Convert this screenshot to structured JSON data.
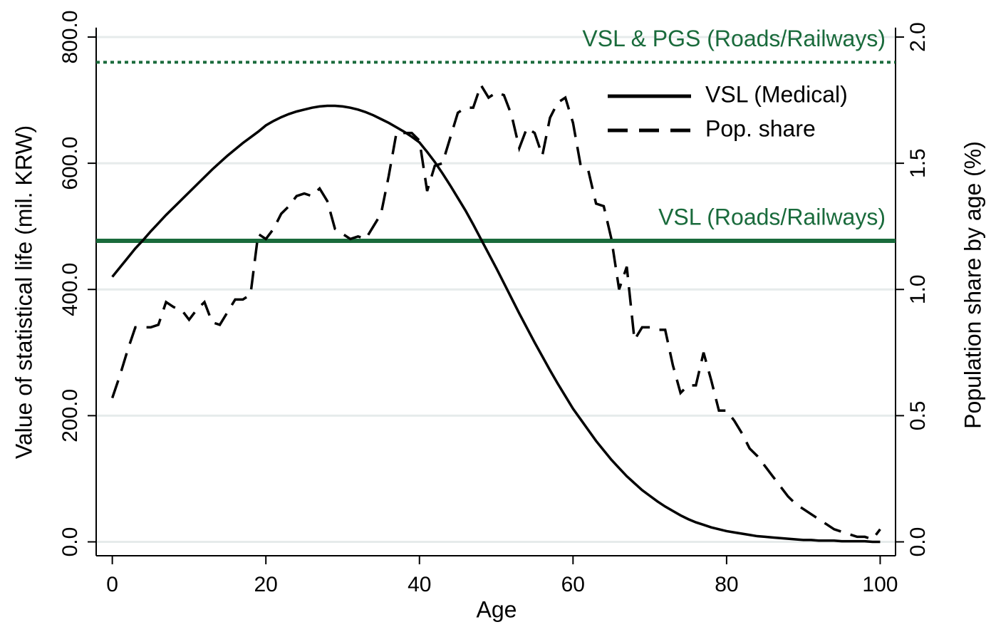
{
  "chart_data": {
    "type": "line",
    "x_label": "Age",
    "y_label": "Value of statistical life (mil. KRW)",
    "y2_label": "Population share by age (%)",
    "xlim": [
      -2.1,
      102
    ],
    "xticks": [
      0,
      20,
      40,
      60,
      80,
      100
    ],
    "ylim": [
      -22,
      815
    ],
    "yticks": [
      {
        "value": 0,
        "label": "0.0"
      },
      {
        "value": 200,
        "label": "200.0"
      },
      {
        "value": 400,
        "label": "400.0"
      },
      {
        "value": 600,
        "label": "600.0"
      },
      {
        "value": 800,
        "label": "800.0"
      }
    ],
    "y2lim": [
      -0.055,
      2.0375
    ],
    "y2ticks": [
      {
        "value": 0,
        "label": "0.0"
      },
      {
        "value": 0.5,
        "label": "0.5"
      },
      {
        "value": 1,
        "label": "1.0"
      },
      {
        "value": 1.5,
        "label": "1.5"
      },
      {
        "value": 2,
        "label": "2.0"
      }
    ],
    "grid": true,
    "legend": "top-right",
    "x": [
      0,
      1,
      2,
      3,
      4,
      5,
      6,
      7,
      8,
      9,
      10,
      11,
      12,
      13,
      14,
      15,
      16,
      17,
      18,
      19,
      20,
      21,
      22,
      23,
      24,
      25,
      26,
      27,
      28,
      29,
      30,
      31,
      32,
      33,
      34,
      35,
      36,
      37,
      38,
      39,
      40,
      41,
      42,
      43,
      44,
      45,
      46,
      47,
      48,
      49,
      50,
      51,
      52,
      53,
      54,
      55,
      56,
      57,
      58,
      59,
      60,
      61,
      62,
      63,
      64,
      65,
      66,
      67,
      68,
      69,
      70,
      71,
      72,
      73,
      74,
      75,
      76,
      77,
      78,
      79,
      80,
      81,
      82,
      83,
      84,
      85,
      86,
      87,
      88,
      89,
      90,
      91,
      92,
      93,
      94,
      95,
      96,
      97,
      98,
      99,
      100
    ],
    "series": [
      {
        "name": "VSL (Medical)",
        "color": "#000000",
        "style": "solid",
        "axis": "y",
        "values": [
          420,
          435,
          450,
          465,
          478,
          492,
          505,
          518,
          530,
          542,
          554,
          566,
          578,
          590,
          601,
          612,
          622,
          632,
          641,
          650,
          660,
          667,
          673,
          678,
          682,
          685,
          688,
          690,
          691,
          691,
          690,
          688,
          685,
          681,
          676,
          670,
          664,
          657,
          650,
          642,
          633,
          618,
          602,
          584,
          565,
          545,
          525,
          503,
          480,
          457,
          434,
          410,
          386,
          362,
          339,
          316,
          294,
          272,
          251,
          231,
          211,
          194,
          177,
          160,
          145,
          130,
          117,
          104,
          93,
          82,
          73,
          64,
          56,
          49,
          42,
          36,
          31,
          27,
          23,
          20,
          17,
          15,
          13,
          11,
          9,
          8,
          7,
          6,
          5,
          4,
          3,
          3,
          2,
          2,
          2,
          1,
          1,
          1,
          1,
          0,
          0
        ]
      },
      {
        "name": "Pop. share",
        "color": "#000000",
        "style": "dashed",
        "axis": "y2",
        "values": [
          0.57,
          0.66,
          0.76,
          0.85,
          0.85,
          0.85,
          0.86,
          0.95,
          0.93,
          0.92,
          0.88,
          0.92,
          0.95,
          0.87,
          0.86,
          0.91,
          0.96,
          0.96,
          0.98,
          1.22,
          1.2,
          1.24,
          1.3,
          1.33,
          1.37,
          1.38,
          1.37,
          1.4,
          1.35,
          1.24,
          1.22,
          1.2,
          1.21,
          1.2,
          1.25,
          1.3,
          1.45,
          1.62,
          1.62,
          1.62,
          1.59,
          1.39,
          1.49,
          1.5,
          1.6,
          1.7,
          1.72,
          1.72,
          1.81,
          1.76,
          1.78,
          1.77,
          1.69,
          1.56,
          1.64,
          1.62,
          1.53,
          1.68,
          1.74,
          1.76,
          1.66,
          1.49,
          1.47,
          1.34,
          1.33,
          1.2,
          1.0,
          1.09,
          0.8,
          0.85,
          0.85,
          0.84,
          0.84,
          0.7,
          0.59,
          0.62,
          0.62,
          0.75,
          0.64,
          0.52,
          0.52,
          0.48,
          0.43,
          0.37,
          0.34,
          0.3,
          0.26,
          0.22,
          0.18,
          0.15,
          0.13,
          0.11,
          0.09,
          0.07,
          0.05,
          0.04,
          0.03,
          0.02,
          0.02,
          0.01,
          0.05
        ]
      }
    ],
    "hlines": [
      {
        "value": 760,
        "label": "VSL & PGS (Roads/Railways)",
        "style": "dotted",
        "color": "#1a6b3c"
      },
      {
        "value": 477,
        "label": "VSL (Roads/Railways)",
        "style": "solid",
        "color": "#1a6b3c"
      }
    ]
  }
}
